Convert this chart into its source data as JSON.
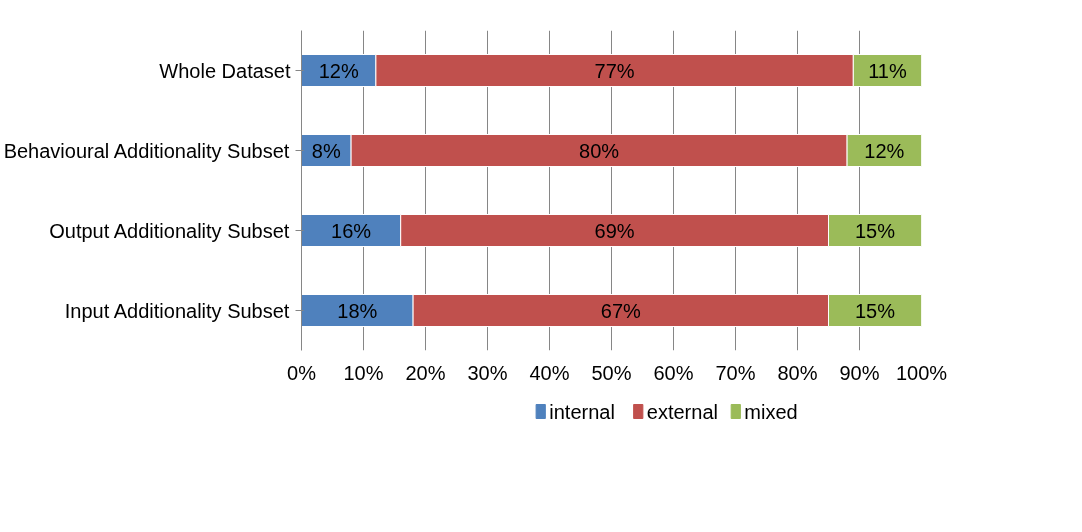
{
  "chart_data": {
    "type": "bar",
    "orientation": "horizontal",
    "stacked": true,
    "categories": [
      "Whole Dataset",
      "Behavioural Additionality Subset",
      "Output Additionality Subset",
      "Input Additionality Subset"
    ],
    "series": [
      {
        "name": "internal",
        "color": "#4f81bd",
        "values": [
          12,
          8,
          16,
          18
        ]
      },
      {
        "name": "external",
        "color": "#c0504d",
        "values": [
          77,
          80,
          69,
          67
        ]
      },
      {
        "name": "mixed",
        "color": "#9bbb59",
        "values": [
          11,
          12,
          15,
          15
        ]
      }
    ],
    "xlim": [
      0,
      100
    ],
    "xticks": [
      {
        "value": 0,
        "label": "0%"
      },
      {
        "value": 10,
        "label": "10%"
      },
      {
        "value": 20,
        "label": "20%"
      },
      {
        "value": 30,
        "label": "30%"
      },
      {
        "value": 40,
        "label": "40%"
      },
      {
        "value": 50,
        "label": "50%"
      },
      {
        "value": 60,
        "label": "60%"
      },
      {
        "value": 70,
        "label": "70%"
      },
      {
        "value": 80,
        "label": "80%"
      },
      {
        "value": 90,
        "label": "90%"
      },
      {
        "value": 100,
        "label": "100%"
      }
    ],
    "value_labels": [
      [
        "12%",
        "8%",
        "16%",
        "18%"
      ],
      [
        "77%",
        "80%",
        "69%",
        "67%"
      ],
      [
        "11%",
        "12%",
        "15%",
        "15%"
      ]
    ],
    "grid": "x",
    "legend": "bottom"
  }
}
